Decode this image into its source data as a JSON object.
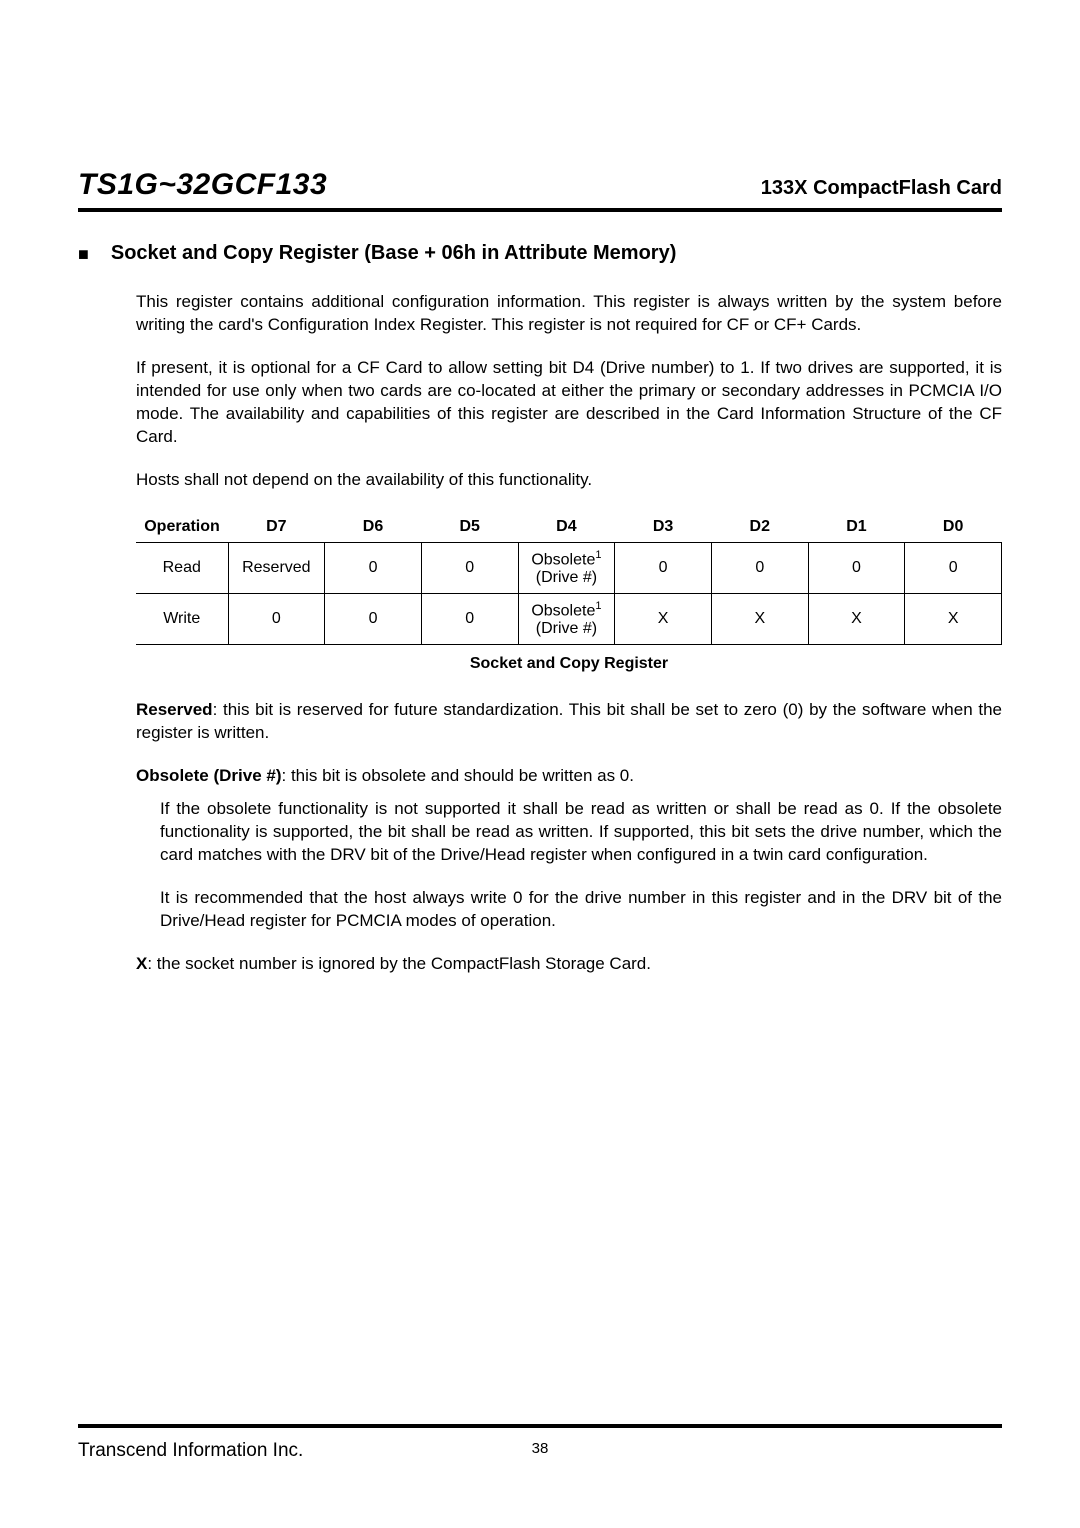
{
  "header": {
    "product": "TS1G~32GCF133",
    "subtitle": "133X CompactFlash Card"
  },
  "section": {
    "bullet": "■",
    "title": "Socket and Copy Register (Base + 06h in Attribute Memory)"
  },
  "paragraphs": {
    "p1": "This register contains additional configuration information. This register is always written by the system before writing the card's Configuration Index Register. This register is not required for CF or CF+ Cards.",
    "p2": "If present, it is optional for a CF Card to allow setting bit D4 (Drive number) to 1. If two drives are supported, it is intended for use only when two cards are co-located at either the primary or secondary addresses in PCMCIA I/O mode.  The availability and capabilities of this register are described in the Card Information Structure of the CF Card.",
    "p3": "Hosts shall not depend on the availability of this functionality.",
    "reserved_label": "Reserved",
    "reserved_text": ": this bit is reserved for future standardization. This bit shall be set to zero (0) by the software when the register is written.",
    "obsolete_label": "Obsolete (Drive #)",
    "obsolete_text": ": this bit is obsolete and should be written as 0.",
    "p6": "If the obsolete functionality is not supported it shall be read as written or shall be read as 0. If the obsolete functionality is supported, the bit shall be read as written. If supported, this bit sets the drive number, which the card matches with the DRV bit of the Drive/Head register when configured in a twin card configuration.",
    "p7": "It is recommended that the host always write 0 for the drive number in this register and in the DRV bit of the Drive/Head register for PCMCIA modes of operation.",
    "x_label": "X",
    "x_text": ": the socket number is ignored by the CompactFlash Storage Card."
  },
  "table": {
    "headers": [
      "Operation",
      "D7",
      "D6",
      "D5",
      "D4",
      "D3",
      "D2",
      "D1",
      "D0"
    ],
    "rows": [
      {
        "op": "Read",
        "d7": "Reserved",
        "d6": "0",
        "d5": "0",
        "d4a": "Obsolete",
        "d4b": "(Drive #)",
        "d3": "0",
        "d2": "0",
        "d1": "0",
        "d0": "0"
      },
      {
        "op": "Write",
        "d7": "0",
        "d6": "0",
        "d5": "0",
        "d4a": "Obsolete",
        "d4b": "(Drive #)",
        "d3": "X",
        "d2": "X",
        "d1": "X",
        "d0": "X"
      }
    ],
    "sup": "1",
    "caption": "Socket and Copy Register"
  },
  "footer": {
    "company": "Transcend Information Inc.",
    "page": "38"
  },
  "colors": {
    "text": "#000000",
    "background": "#ffffff",
    "rule": "#000000",
    "table_border": "#000000"
  },
  "typography": {
    "body_fontsize_pt": 13,
    "title_fontsize_pt": 22,
    "subtitle_fontsize_pt": 15,
    "section_fontsize_pt": 15,
    "caption_fontsize_pt": 12,
    "footer_fontsize_pt": 14,
    "font_family": "Arial"
  }
}
